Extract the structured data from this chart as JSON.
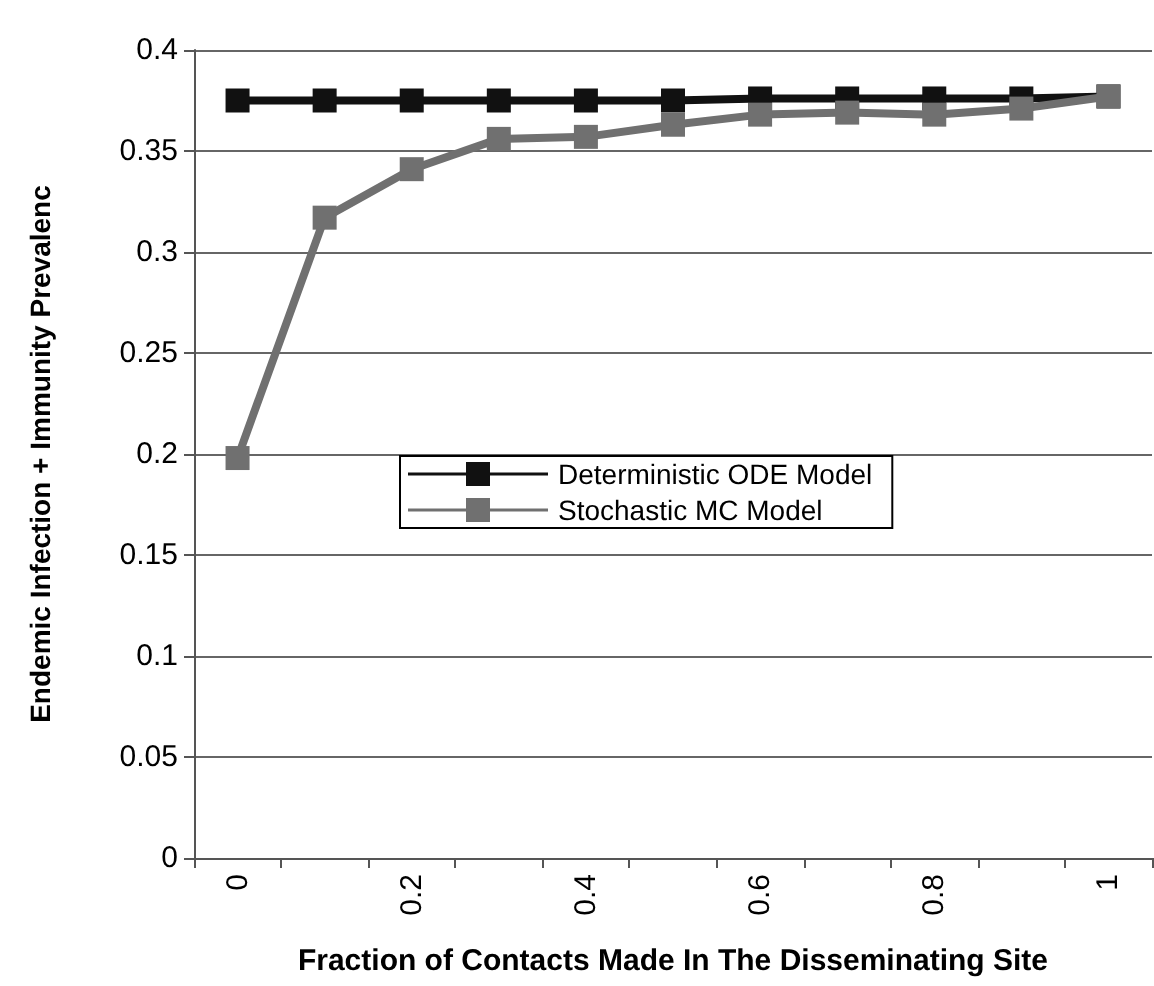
{
  "chart_data": {
    "type": "line",
    "xlabel": "Fraction of Contacts Made In The Disseminating Site",
    "ylabel": "Endemic Infection + Immunity Prevalenc",
    "categories": [
      "0",
      null,
      "0.2",
      null,
      "0.4",
      null,
      "0.6",
      null,
      "0.8",
      null,
      "1"
    ],
    "series": [
      {
        "name": "Deterministic ODE Model",
        "color": "#111111",
        "values": [
          0.375,
          0.375,
          0.375,
          0.375,
          0.375,
          0.375,
          0.376,
          0.376,
          0.376,
          0.376,
          0.377
        ]
      },
      {
        "name": "Stochastic MC Model",
        "color": "#707070",
        "values": [
          0.198,
          0.317,
          0.341,
          0.356,
          0.357,
          0.363,
          0.368,
          0.369,
          0.368,
          0.371,
          0.377
        ]
      }
    ],
    "ylim": [
      0,
      0.4
    ],
    "yticks": [
      0,
      0.05,
      0.1,
      0.15,
      0.2,
      0.25,
      0.3,
      0.35,
      0.4
    ],
    "grid": "y",
    "legend": "center",
    "marker": "square",
    "line_style": "solid"
  }
}
